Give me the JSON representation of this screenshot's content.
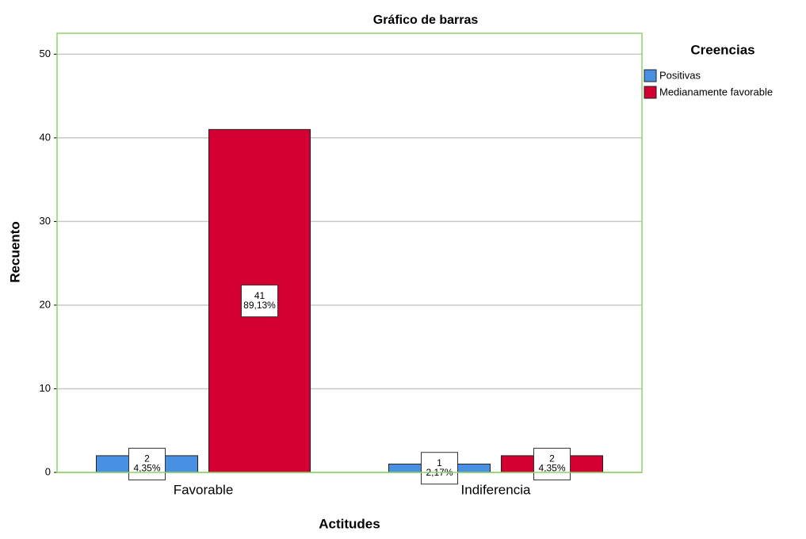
{
  "chart_data": {
    "type": "bar",
    "title": "Gráfico de barras",
    "x_label": "Actitudes",
    "y_label": "Recuento",
    "categories": [
      "Favorable",
      "Indiferencia"
    ],
    "legend_title": "Creencias",
    "series": [
      {
        "name": "Positivas",
        "color": "#4a90e2",
        "values": [
          2,
          1
        ],
        "percentages": [
          4.35,
          2.17
        ],
        "percentage_labels": [
          "4,35%",
          "2,17%"
        ]
      },
      {
        "name": "Medianamente favorable",
        "color": "#d30031",
        "values": [
          41,
          2
        ],
        "percentages": [
          89.13,
          4.35
        ],
        "percentage_labels": [
          "89,13%",
          "4,35%"
        ]
      }
    ],
    "ylim": [
      0,
      52.5
    ],
    "yticks": [
      0,
      10,
      20,
      30,
      40,
      50
    ],
    "grid": true,
    "legend": "right"
  }
}
